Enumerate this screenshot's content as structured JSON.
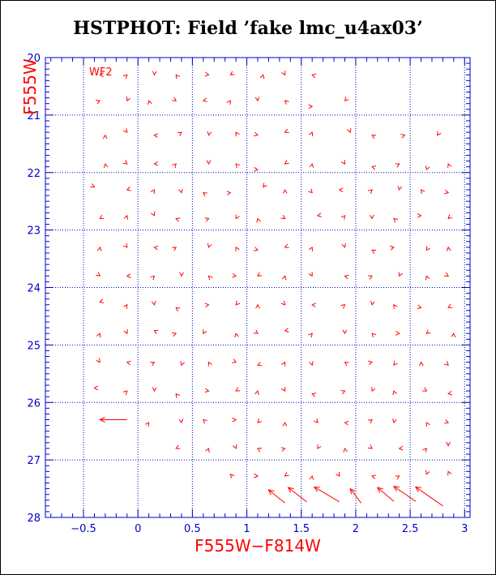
{
  "chart_data": {
    "type": "scatter",
    "title": "HSTPHOT: Field ’fake lmc_u4ax03’",
    "xlabel": "F555W−F814W",
    "ylabel": "F555W",
    "panel_label": "WF2",
    "xlim": [
      -0.85,
      3.05
    ],
    "ylim": [
      28,
      20
    ],
    "y_inverted": true,
    "grid": true,
    "x_ticks": [
      -0.5,
      0,
      0.5,
      1,
      1.5,
      2,
      2.5,
      3
    ],
    "x_tick_labels": [
      "−0.5",
      "0",
      "0.5",
      "1",
      "1.5",
      "2",
      "2.5",
      "3"
    ],
    "y_ticks": [
      20,
      21,
      22,
      23,
      24,
      25,
      26,
      27,
      28
    ],
    "y_tick_labels": [
      "20",
      "21",
      "22",
      "23",
      "24",
      "25",
      "26",
      "27",
      "28"
    ],
    "colors": {
      "markers": "#ff0000",
      "axes": "#0000cc",
      "grid": "#0000cc",
      "labels": "#ff0000",
      "title": "#000000"
    },
    "series": [
      {
        "marker": "v-shaped offset marker",
        "points": [
          [
            -0.35,
            20.3
          ],
          [
            -0.1,
            20.3
          ],
          [
            0.15,
            20.3
          ],
          [
            0.35,
            20.3
          ],
          [
            0.65,
            20.3
          ],
          [
            0.85,
            20.3
          ],
          [
            1.15,
            20.3
          ],
          [
            1.35,
            20.3
          ],
          [
            1.6,
            20.3
          ],
          [
            -0.35,
            20.75
          ],
          [
            -0.1,
            20.75
          ],
          [
            0.1,
            20.75
          ],
          [
            0.35,
            20.75
          ],
          [
            0.6,
            20.75
          ],
          [
            0.85,
            20.75
          ],
          [
            1.1,
            20.75
          ],
          [
            1.35,
            20.75
          ],
          [
            1.6,
            20.85
          ],
          [
            1.9,
            20.75
          ],
          [
            -0.3,
            21.35
          ],
          [
            -0.1,
            21.3
          ],
          [
            0.15,
            21.35
          ],
          [
            0.4,
            21.3
          ],
          [
            0.65,
            21.35
          ],
          [
            0.9,
            21.3
          ],
          [
            1.1,
            21.35
          ],
          [
            1.35,
            21.3
          ],
          [
            1.6,
            21.3
          ],
          [
            1.95,
            21.3
          ],
          [
            2.15,
            21.35
          ],
          [
            2.45,
            21.35
          ],
          [
            2.75,
            21.35
          ],
          [
            -0.3,
            21.85
          ],
          [
            -0.1,
            21.85
          ],
          [
            0.15,
            21.85
          ],
          [
            0.35,
            21.85
          ],
          [
            0.65,
            21.85
          ],
          [
            0.9,
            21.85
          ],
          [
            1.1,
            21.95
          ],
          [
            1.35,
            21.85
          ],
          [
            1.6,
            21.85
          ],
          [
            1.9,
            21.85
          ],
          [
            2.15,
            21.9
          ],
          [
            2.4,
            21.85
          ],
          [
            2.65,
            21.95
          ],
          [
            2.85,
            21.85
          ],
          [
            -0.4,
            22.25
          ],
          [
            -0.1,
            22.3
          ],
          [
            0.15,
            22.3
          ],
          [
            0.4,
            22.35
          ],
          [
            0.6,
            22.35
          ],
          [
            0.85,
            22.35
          ],
          [
            1.15,
            22.25
          ],
          [
            1.35,
            22.3
          ],
          [
            1.6,
            22.35
          ],
          [
            1.85,
            22.3
          ],
          [
            2.15,
            22.3
          ],
          [
            2.4,
            22.3
          ],
          [
            2.6,
            22.3
          ],
          [
            2.85,
            22.35
          ],
          [
            -0.35,
            22.8
          ],
          [
            -0.1,
            22.75
          ],
          [
            0.15,
            22.75
          ],
          [
            0.35,
            22.8
          ],
          [
            0.65,
            22.8
          ],
          [
            0.9,
            22.8
          ],
          [
            1.1,
            22.8
          ],
          [
            1.35,
            22.8
          ],
          [
            1.65,
            22.75
          ],
          [
            1.9,
            22.75
          ],
          [
            2.15,
            22.8
          ],
          [
            2.35,
            22.8
          ],
          [
            2.6,
            22.75
          ],
          [
            2.85,
            22.8
          ],
          [
            -0.35,
            23.3
          ],
          [
            -0.1,
            23.3
          ],
          [
            0.15,
            23.3
          ],
          [
            0.35,
            23.3
          ],
          [
            0.65,
            23.3
          ],
          [
            0.9,
            23.3
          ],
          [
            1.1,
            23.35
          ],
          [
            1.35,
            23.3
          ],
          [
            1.6,
            23.3
          ],
          [
            1.9,
            23.3
          ],
          [
            2.15,
            23.35
          ],
          [
            2.35,
            23.3
          ],
          [
            2.65,
            23.35
          ],
          [
            2.85,
            23.3
          ],
          [
            -0.35,
            23.8
          ],
          [
            -0.1,
            23.8
          ],
          [
            0.15,
            23.8
          ],
          [
            0.4,
            23.8
          ],
          [
            0.65,
            23.8
          ],
          [
            0.9,
            23.8
          ],
          [
            1.1,
            23.8
          ],
          [
            1.35,
            23.8
          ],
          [
            1.6,
            23.8
          ],
          [
            1.9,
            23.8
          ],
          [
            2.15,
            23.8
          ],
          [
            2.4,
            23.8
          ],
          [
            2.65,
            23.8
          ],
          [
            2.85,
            23.8
          ],
          [
            -0.35,
            24.25
          ],
          [
            -0.1,
            24.3
          ],
          [
            0.15,
            24.3
          ],
          [
            0.35,
            24.35
          ],
          [
            0.65,
            24.3
          ],
          [
            0.9,
            24.3
          ],
          [
            1.1,
            24.3
          ],
          [
            1.35,
            24.3
          ],
          [
            1.6,
            24.3
          ],
          [
            1.9,
            24.3
          ],
          [
            2.15,
            24.3
          ],
          [
            2.35,
            24.3
          ],
          [
            2.6,
            24.35
          ],
          [
            2.85,
            24.35
          ],
          [
            -0.35,
            24.8
          ],
          [
            -0.1,
            24.8
          ],
          [
            0.15,
            24.75
          ],
          [
            0.35,
            24.8
          ],
          [
            0.6,
            24.8
          ],
          [
            0.9,
            24.8
          ],
          [
            1.1,
            24.8
          ],
          [
            1.35,
            24.75
          ],
          [
            1.6,
            24.8
          ],
          [
            1.9,
            24.8
          ],
          [
            2.15,
            24.8
          ],
          [
            2.4,
            24.8
          ],
          [
            2.65,
            24.8
          ],
          [
            2.9,
            24.8
          ],
          [
            -0.35,
            25.3
          ],
          [
            -0.1,
            25.3
          ],
          [
            0.15,
            25.3
          ],
          [
            0.4,
            25.35
          ],
          [
            0.65,
            25.3
          ],
          [
            0.9,
            25.3
          ],
          [
            1.1,
            25.35
          ],
          [
            1.35,
            25.3
          ],
          [
            1.6,
            25.35
          ],
          [
            1.9,
            25.3
          ],
          [
            2.15,
            25.3
          ],
          [
            2.35,
            25.35
          ],
          [
            2.6,
            25.3
          ],
          [
            2.85,
            25.35
          ],
          [
            -0.4,
            25.75
          ],
          [
            -0.1,
            25.8
          ],
          [
            0.15,
            25.8
          ],
          [
            0.35,
            25.85
          ],
          [
            0.65,
            25.8
          ],
          [
            0.9,
            25.8
          ],
          [
            1.1,
            25.8
          ],
          [
            1.35,
            25.8
          ],
          [
            1.6,
            25.85
          ],
          [
            1.9,
            25.8
          ],
          [
            2.15,
            25.8
          ],
          [
            2.35,
            25.8
          ],
          [
            2.65,
            25.8
          ],
          [
            2.85,
            25.85
          ],
          [
            0.1,
            26.35
          ],
          [
            0.4,
            26.35
          ],
          [
            0.6,
            26.3
          ],
          [
            0.9,
            26.3
          ],
          [
            1.1,
            26.35
          ],
          [
            1.35,
            26.35
          ],
          [
            1.65,
            26.35
          ],
          [
            1.9,
            26.35
          ],
          [
            2.15,
            26.3
          ],
          [
            2.35,
            26.35
          ],
          [
            2.65,
            26.35
          ],
          [
            2.85,
            26.35
          ],
          [
            0.35,
            26.8
          ],
          [
            0.65,
            26.8
          ],
          [
            0.9,
            26.8
          ],
          [
            1.1,
            26.8
          ],
          [
            1.35,
            26.8
          ],
          [
            1.65,
            26.8
          ],
          [
            1.9,
            26.8
          ],
          [
            2.15,
            26.8
          ],
          [
            2.4,
            26.8
          ],
          [
            2.65,
            26.8
          ],
          [
            2.85,
            26.75
          ],
          [
            0.85,
            27.25
          ],
          [
            1.1,
            27.28
          ],
          [
            1.35,
            27.28
          ],
          [
            1.6,
            27.28
          ],
          [
            1.85,
            27.28
          ],
          [
            2.15,
            27.28
          ],
          [
            2.4,
            27.28
          ],
          [
            2.65,
            27.25
          ],
          [
            2.85,
            27.2
          ]
        ]
      },
      {
        "marker": "arrow",
        "vectors": [
          [
            -0.1,
            26.3,
            -0.35,
            26.3
          ],
          [
            1.35,
            27.75,
            1.2,
            27.52
          ],
          [
            1.55,
            27.73,
            1.38,
            27.48
          ],
          [
            1.85,
            27.73,
            1.62,
            27.47
          ],
          [
            2.05,
            27.75,
            1.95,
            27.5
          ],
          [
            2.35,
            27.72,
            2.2,
            27.48
          ],
          [
            2.55,
            27.72,
            2.35,
            27.46
          ],
          [
            2.8,
            27.8,
            2.55,
            27.47
          ]
        ]
      }
    ]
  }
}
